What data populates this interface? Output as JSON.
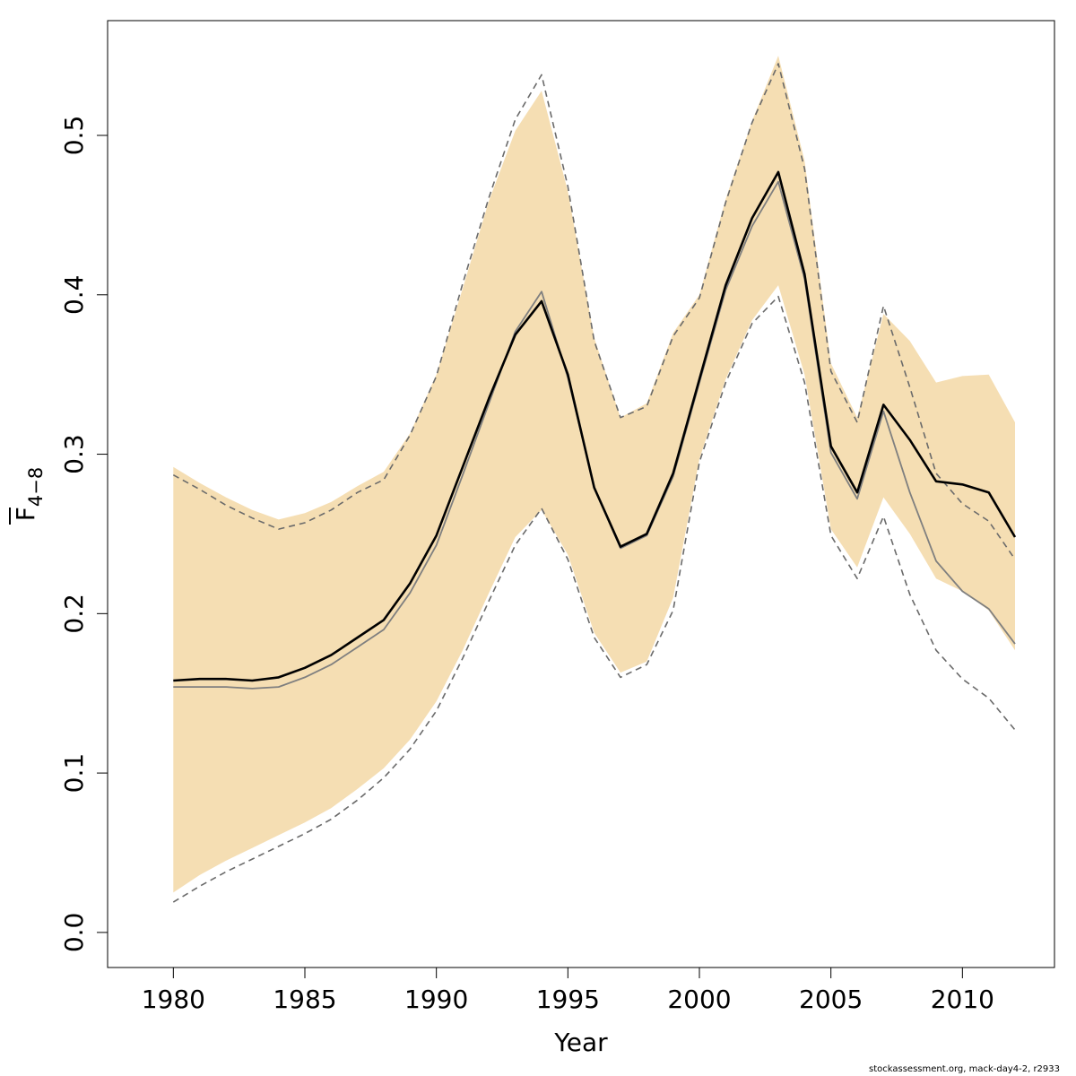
{
  "chart_data": {
    "type": "line",
    "xlabel": "Year",
    "ylabel_main": "F",
    "ylabel_sub": "4−8",
    "xlim": [
      1977.5,
      2013.5
    ],
    "ylim": [
      -0.022,
      0.572
    ],
    "x_ticks": [
      1980,
      1985,
      1990,
      1995,
      2000,
      2005,
      2010
    ],
    "y_ticks": [
      0.0,
      0.1,
      0.2,
      0.3,
      0.4,
      0.5
    ],
    "y_tick_labels": [
      "0.0",
      "0.1",
      "0.2",
      "0.3",
      "0.4",
      "0.5"
    ],
    "grid": false,
    "colors": {
      "band_fill": "#F5DEB3",
      "estimate_line": "#000000",
      "previous_line": "#7f7f7f",
      "previous_ci_line": "#6a6a6a",
      "axis": "#000000"
    },
    "x": [
      1980,
      1981,
      1982,
      1983,
      1984,
      1985,
      1986,
      1987,
      1988,
      1989,
      1990,
      1991,
      1992,
      1993,
      1994,
      1995,
      1996,
      1997,
      1998,
      1999,
      2000,
      2001,
      2002,
      2003,
      2004,
      2005,
      2006,
      2007,
      2008,
      2009,
      2010,
      2011,
      2012
    ],
    "series": [
      {
        "role": "ci_band",
        "lower": [
          0.025,
          0.036,
          0.045,
          0.053,
          0.061,
          0.069,
          0.078,
          0.09,
          0.103,
          0.121,
          0.145,
          0.177,
          0.213,
          0.248,
          0.265,
          0.237,
          0.188,
          0.163,
          0.17,
          0.21,
          0.297,
          0.347,
          0.384,
          0.406,
          0.35,
          0.253,
          0.229,
          0.273,
          0.25,
          0.222,
          0.214,
          0.202,
          0.177
        ],
        "upper": [
          0.292,
          0.282,
          0.273,
          0.265,
          0.259,
          0.263,
          0.27,
          0.28,
          0.289,
          0.313,
          0.35,
          0.404,
          0.459,
          0.503,
          0.528,
          0.465,
          0.373,
          0.323,
          0.332,
          0.376,
          0.4,
          0.46,
          0.509,
          0.55,
          0.484,
          0.357,
          0.323,
          0.388,
          0.371,
          0.345,
          0.349,
          0.35,
          0.32
        ]
      },
      {
        "role": "estimate",
        "values": [
          0.158,
          0.159,
          0.159,
          0.158,
          0.16,
          0.166,
          0.174,
          0.185,
          0.196,
          0.219,
          0.249,
          0.292,
          0.335,
          0.375,
          0.396,
          0.35,
          0.279,
          0.242,
          0.25,
          0.288,
          0.347,
          0.406,
          0.448,
          0.477,
          0.413,
          0.305,
          0.276,
          0.331,
          0.309,
          0.283,
          0.281,
          0.276,
          0.248
        ]
      },
      {
        "role": "previous_estimate",
        "values": [
          0.154,
          0.154,
          0.154,
          0.153,
          0.154,
          0.16,
          0.168,
          0.179,
          0.19,
          0.213,
          0.243,
          0.287,
          0.332,
          0.377,
          0.402,
          0.348,
          0.279,
          0.241,
          0.249,
          0.286,
          0.345,
          0.403,
          0.443,
          0.471,
          0.41,
          0.301,
          0.272,
          0.327,
          0.276,
          0.233,
          0.214,
          0.203,
          0.181
        ]
      },
      {
        "role": "previous_upper",
        "values": [
          0.287,
          0.278,
          0.268,
          0.26,
          0.253,
          0.257,
          0.265,
          0.276,
          0.284,
          0.312,
          0.349,
          0.407,
          0.461,
          0.51,
          0.538,
          0.468,
          0.371,
          0.323,
          0.33,
          0.374,
          0.398,
          0.458,
          0.508,
          0.545,
          0.479,
          0.352,
          0.32,
          0.393,
          0.342,
          0.288,
          0.269,
          0.258,
          0.234
        ]
      },
      {
        "role": "previous_lower",
        "values": [
          0.019,
          0.029,
          0.038,
          0.046,
          0.054,
          0.062,
          0.071,
          0.083,
          0.097,
          0.115,
          0.139,
          0.172,
          0.208,
          0.243,
          0.266,
          0.234,
          0.185,
          0.16,
          0.168,
          0.202,
          0.295,
          0.345,
          0.382,
          0.399,
          0.345,
          0.249,
          0.222,
          0.261,
          0.212,
          0.177,
          0.159,
          0.147,
          0.127
        ]
      }
    ]
  },
  "footer": "stockassessment.org, mack-day4-2, r2933"
}
